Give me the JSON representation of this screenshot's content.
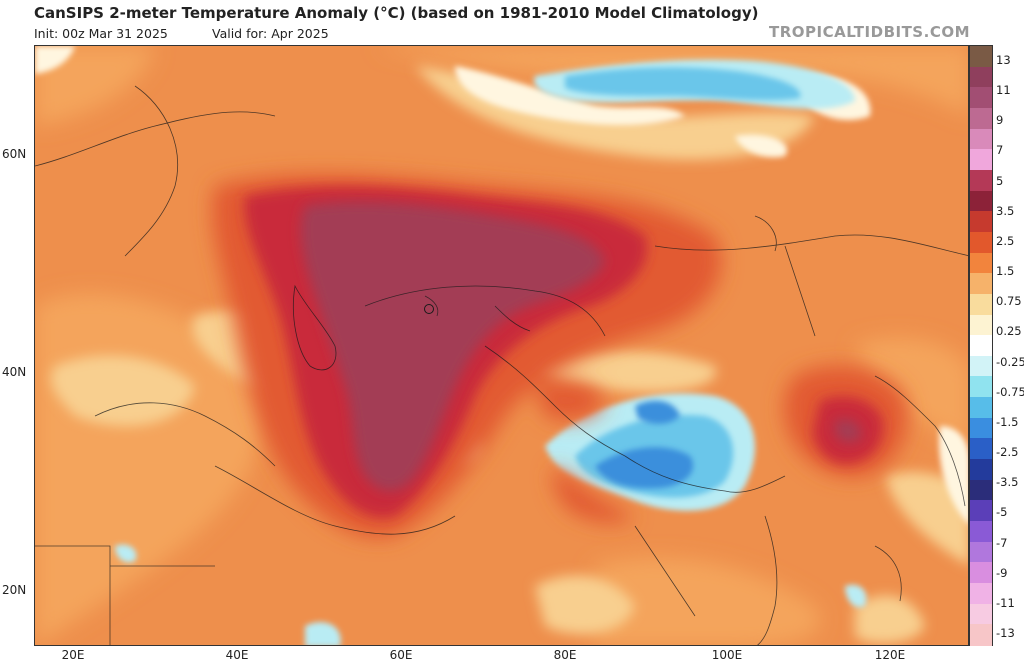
{
  "header": {
    "title": "CanSIPS 2-meter Temperature Anomaly (°C) (based on 1981-2010 Model Climatology)",
    "init": "Init: 00z Mar 31 2025",
    "valid": "Valid for: Apr 2025",
    "site": "TROPICALTIDBITS.COM"
  },
  "axes": {
    "lat_labels": [
      "60N",
      "40N",
      "20N"
    ],
    "lon_labels": [
      "20E",
      "40E",
      "60E",
      "80E",
      "100E",
      "120E"
    ]
  },
  "colorbar": {
    "labels": [
      "13",
      "11",
      "9",
      "7",
      "5",
      "3.5",
      "2.5",
      "1.5",
      "0.75",
      "0.25",
      "-0.25",
      "-0.75",
      "-1.5",
      "-2.5",
      "-3.5",
      "-5",
      "-7",
      "-9",
      "-11",
      "-13"
    ],
    "colors": [
      "#7a5a45",
      "#8f3f5d",
      "#a24e73",
      "#bd6a92",
      "#d98aba",
      "#f0a7dc",
      "#b43957",
      "#8c2238",
      "#c63a2e",
      "#e2582c",
      "#f2843d",
      "#f6b26a",
      "#f9dc9d",
      "#fdf3d2",
      "#ffffff",
      "#d2f3f7",
      "#90e3ef",
      "#57bde9",
      "#3a8ee0",
      "#2a5fc7",
      "#233b9c",
      "#2b2d7a",
      "#5b3fb8",
      "#8a5ad6",
      "#b077dd",
      "#d98ee0",
      "#f0b2e6",
      "#f7cbe2",
      "#f7c6c8"
    ]
  },
  "map": {
    "background_color": "#ee8f4c",
    "anomaly_colors": {
      "strong_warm": "#a33d55",
      "warm_dark": "#c9293a",
      "warm": "#e25a31",
      "mild_warm": "#f4a45c",
      "slight_warm": "#f8cf8f",
      "neutral": "#fff6e0",
      "slight_cool": "#b9ecf4",
      "cool": "#6ac6ea",
      "cold": "#3b8fdc"
    }
  }
}
